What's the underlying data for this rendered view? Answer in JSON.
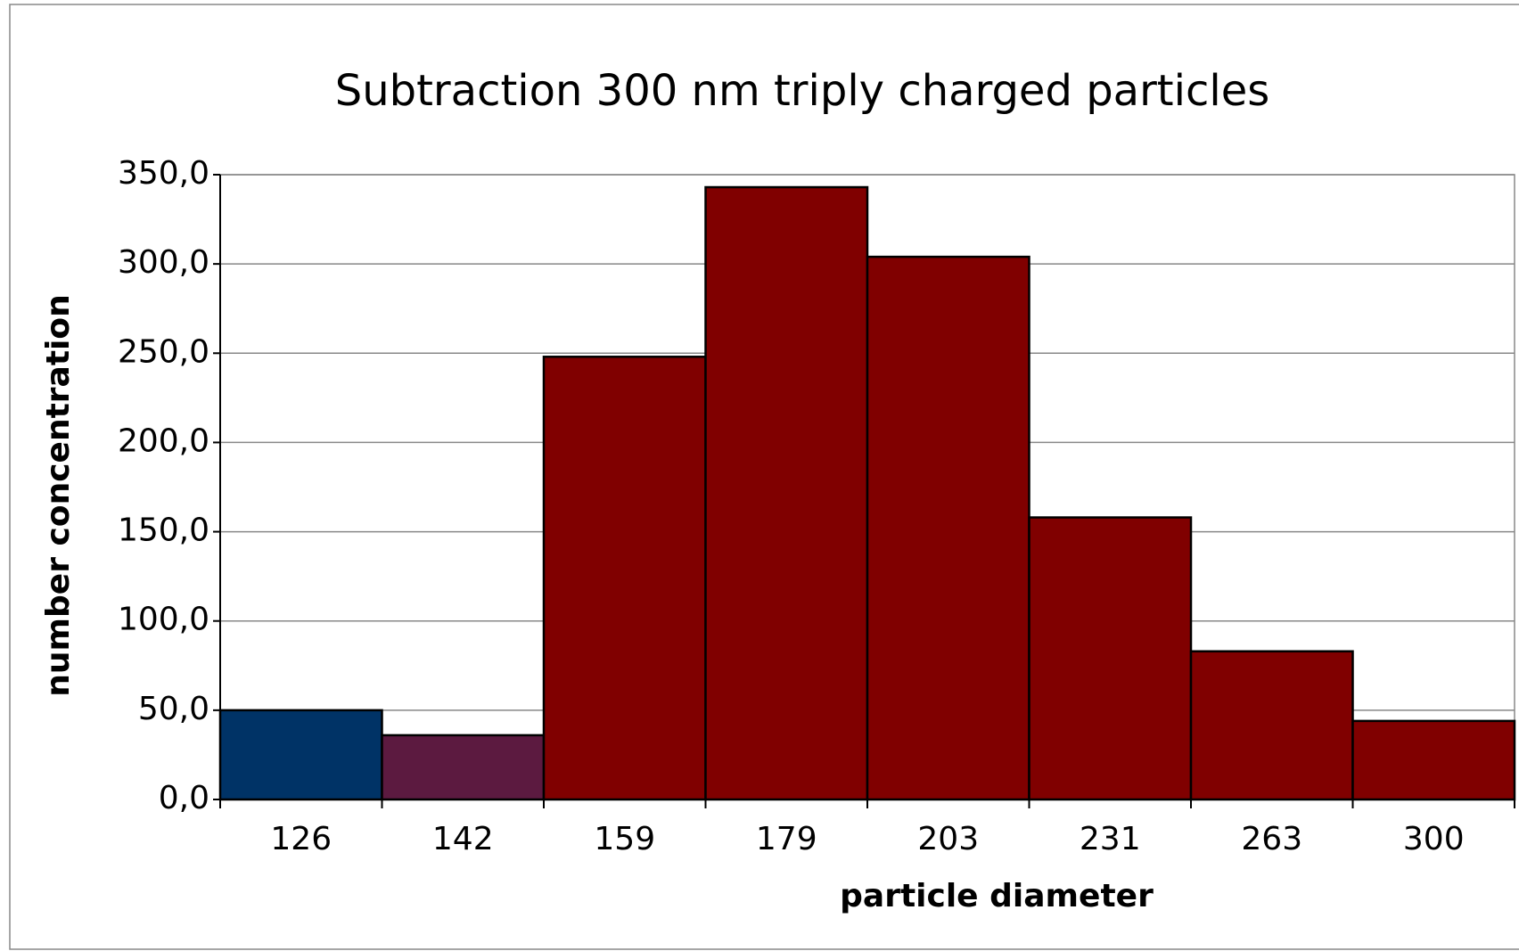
{
  "chart_data": {
    "type": "bar",
    "title": "Subtraction 300 nm triply charged particles",
    "xlabel": "particle diameter",
    "ylabel": "number concentration",
    "categories": [
      "126",
      "142",
      "159",
      "179",
      "203",
      "231",
      "263",
      "300"
    ],
    "values": [
      50,
      36,
      248,
      343,
      304,
      158,
      83,
      44
    ],
    "colors": [
      "#003366",
      "#5c1a40",
      "#800000",
      "#800000",
      "#800000",
      "#800000",
      "#800000",
      "#800000"
    ],
    "ylim": [
      0,
      350
    ],
    "yticks": [
      {
        "value": 0,
        "label": "0,0"
      },
      {
        "value": 50,
        "label": "50,0"
      },
      {
        "value": 100,
        "label": "100,0"
      },
      {
        "value": 150,
        "label": "150,0"
      },
      {
        "value": 200,
        "label": "200,0"
      },
      {
        "value": 250,
        "label": "250,0"
      },
      {
        "value": 300,
        "label": "300,0"
      },
      {
        "value": 350,
        "label": "350,0"
      }
    ],
    "grid": true
  }
}
